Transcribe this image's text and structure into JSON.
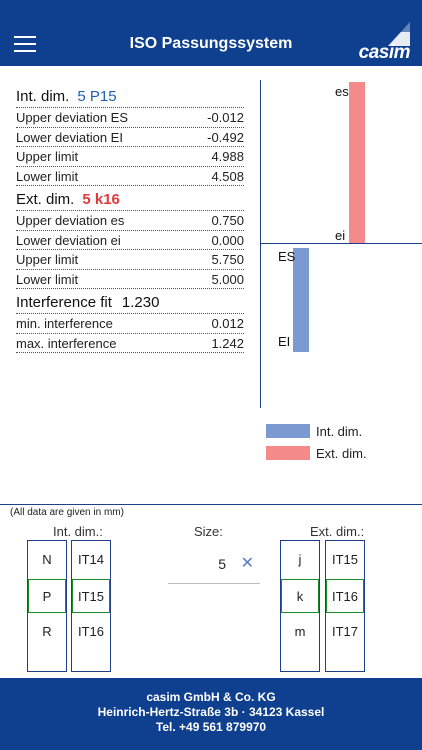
{
  "header": {
    "title": "ISO Passungssystem",
    "brand": "casim"
  },
  "internal": {
    "label": "Int. dim.",
    "code": "5 P15",
    "rows": [
      {
        "label": "Upper deviation ES",
        "value": "-0.012"
      },
      {
        "label": "Lower deviation EI",
        "value": "-0.492"
      },
      {
        "label": "Upper limit",
        "value": "4.988"
      },
      {
        "label": "Lower limit",
        "value": "4.508"
      }
    ]
  },
  "external": {
    "label": "Ext. dim.",
    "code": "5 k16",
    "rows": [
      {
        "label": "Upper deviation es",
        "value": "0.750"
      },
      {
        "label": "Lower deviation ei",
        "value": "0.000"
      },
      {
        "label": "Upper limit",
        "value": "5.750"
      },
      {
        "label": "Lower limit",
        "value": "5.000"
      }
    ]
  },
  "fit": {
    "label": "Interference fit",
    "value": "1.230",
    "rows": [
      {
        "label": "min. interference",
        "value": "0.012"
      },
      {
        "label": "max. interference",
        "value": "1.242"
      }
    ]
  },
  "graph": {
    "es_label": "es",
    "ei_label": "ei",
    "ES_label": "ES",
    "EI_label": "EI",
    "ext_color": "#f58a8a",
    "int_color": "#7b9ad1",
    "legend_int": "Int. dim.",
    "legend_ext": "Ext. dim."
  },
  "selector": {
    "note": "(All data are given in mm)",
    "int_label": "Int. dim.:",
    "size_label": "Size:",
    "ext_label": "Ext. dim.:",
    "size_value": "5",
    "int_letters": [
      "N",
      "P",
      "R"
    ],
    "int_grades": [
      "IT14",
      "IT15",
      "IT16"
    ],
    "ext_letters": [
      "j",
      "k",
      "m"
    ],
    "ext_grades": [
      "IT15",
      "IT16",
      "IT17"
    ]
  },
  "footer": {
    "line1": "casim GmbH & Co. KG",
    "line2": "Heinrich-Hertz-Straße 3b · 34123 Kassel",
    "line3": "Tel. +49 561 879970"
  }
}
